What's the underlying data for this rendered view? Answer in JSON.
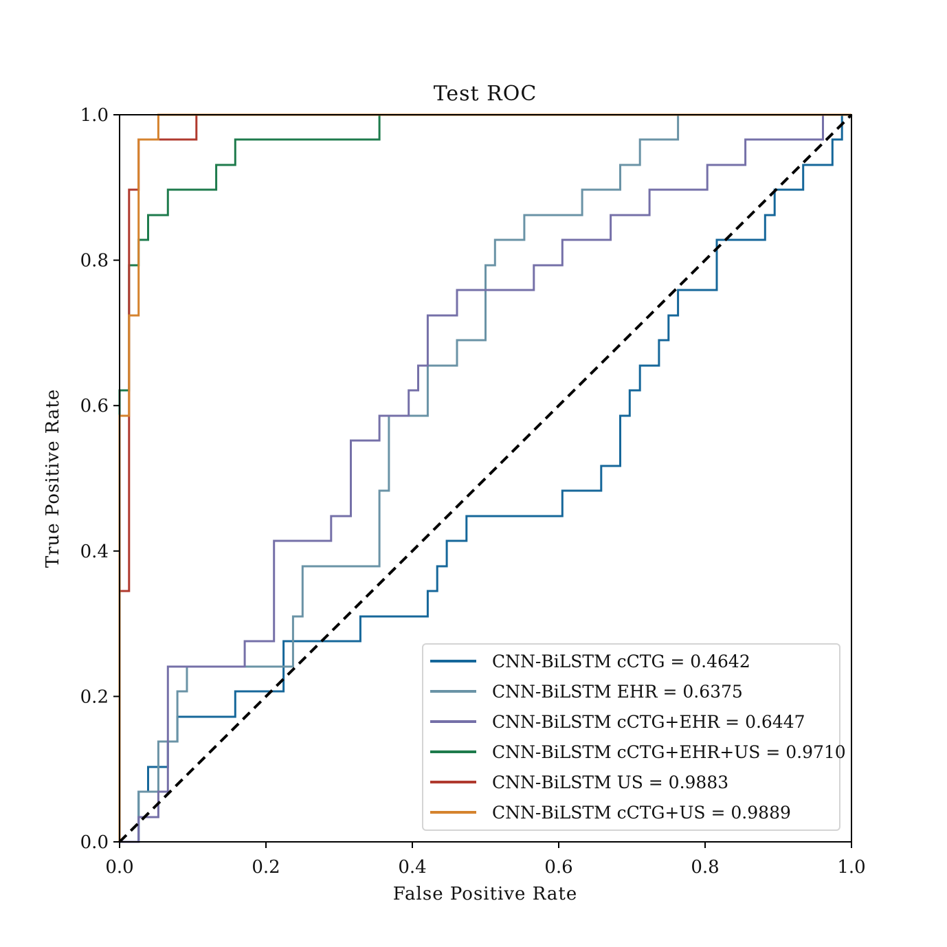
{
  "chart_data": {
    "type": "line",
    "title": "Test ROC",
    "xlabel": "False Positive Rate",
    "ylabel": "True Positive Rate",
    "xlim": [
      0.0,
      1.0
    ],
    "ylim": [
      0.0,
      1.0
    ],
    "xticks": [
      "0.0",
      "0.2",
      "0.4",
      "0.6",
      "0.8",
      "1.0"
    ],
    "yticks": [
      "0.0",
      "0.2",
      "0.4",
      "0.6",
      "0.8",
      "1.0"
    ],
    "grid": false,
    "legend_position": "lower-right",
    "baseline": {
      "name": "chance",
      "x": [
        0,
        1
      ],
      "y": [
        0,
        1
      ],
      "style": "dashed",
      "color": "#000000"
    },
    "series": [
      {
        "name": "CNN-BiLSTM cCTG",
        "legend_label": "CNN-BiLSTM cCTG  = 0.4642",
        "auc": "0.4642",
        "color": "#16679a",
        "x": [
          0.0,
          0.026,
          0.026,
          0.039,
          0.039,
          0.066,
          0.066,
          0.079,
          0.079,
          0.158,
          0.158,
          0.224,
          0.224,
          0.329,
          0.329,
          0.421,
          0.421,
          0.434,
          0.434,
          0.447,
          0.447,
          0.474,
          0.474,
          0.605,
          0.605,
          0.658,
          0.658,
          0.684,
          0.684,
          0.697,
          0.697,
          0.711,
          0.711,
          0.737,
          0.737,
          0.75,
          0.75,
          0.763,
          0.763,
          0.816,
          0.816,
          0.882,
          0.882,
          0.895,
          0.895,
          0.934,
          0.934,
          0.974,
          0.974,
          0.987,
          0.987,
          1.0
        ],
        "y": [
          0.0,
          0.0,
          0.069,
          0.069,
          0.103,
          0.103,
          0.138,
          0.138,
          0.172,
          0.172,
          0.207,
          0.207,
          0.276,
          0.276,
          0.31,
          0.31,
          0.345,
          0.345,
          0.379,
          0.379,
          0.414,
          0.414,
          0.448,
          0.448,
          0.483,
          0.483,
          0.517,
          0.517,
          0.586,
          0.586,
          0.621,
          0.621,
          0.655,
          0.655,
          0.69,
          0.69,
          0.724,
          0.724,
          0.759,
          0.759,
          0.828,
          0.828,
          0.862,
          0.862,
          0.897,
          0.897,
          0.931,
          0.931,
          0.966,
          0.966,
          1.0,
          1.0
        ]
      },
      {
        "name": "CNN-BiLSTM EHR",
        "legend_label": "CNN-BiLSTM EHR  = 0.6375",
        "auc": "0.6375",
        "color": "#6a93a6",
        "x": [
          0.0,
          0.026,
          0.026,
          0.053,
          0.053,
          0.079,
          0.079,
          0.092,
          0.092,
          0.237,
          0.237,
          0.25,
          0.25,
          0.355,
          0.355,
          0.368,
          0.368,
          0.421,
          0.421,
          0.461,
          0.461,
          0.5,
          0.5,
          0.513,
          0.513,
          0.553,
          0.553,
          0.632,
          0.632,
          0.684,
          0.684,
          0.711,
          0.711,
          0.763,
          0.763,
          0.947,
          0.947,
          1.0
        ],
        "y": [
          0.0,
          0.0,
          0.069,
          0.069,
          0.138,
          0.138,
          0.207,
          0.207,
          0.241,
          0.241,
          0.31,
          0.31,
          0.379,
          0.379,
          0.483,
          0.483,
          0.586,
          0.586,
          0.655,
          0.655,
          0.69,
          0.69,
          0.793,
          0.793,
          0.828,
          0.828,
          0.862,
          0.862,
          0.897,
          0.897,
          0.931,
          0.931,
          0.966,
          0.966,
          1.0,
          1.0,
          1.0,
          1.0
        ]
      },
      {
        "name": "CNN-BiLSTM cCTG+EHR",
        "legend_label": "CNN-BiLSTM cCTG+EHR  = 0.6447",
        "auc": "0.6447",
        "color": "#7570a8",
        "x": [
          0.0,
          0.026,
          0.026,
          0.053,
          0.053,
          0.066,
          0.066,
          0.171,
          0.171,
          0.211,
          0.211,
          0.289,
          0.289,
          0.316,
          0.316,
          0.355,
          0.355,
          0.395,
          0.395,
          0.408,
          0.408,
          0.421,
          0.421,
          0.461,
          0.461,
          0.566,
          0.566,
          0.605,
          0.605,
          0.671,
          0.671,
          0.724,
          0.724,
          0.803,
          0.803,
          0.855,
          0.855,
          0.961,
          0.961,
          1.0
        ],
        "y": [
          0.0,
          0.0,
          0.034,
          0.034,
          0.069,
          0.069,
          0.241,
          0.241,
          0.276,
          0.276,
          0.414,
          0.414,
          0.448,
          0.448,
          0.552,
          0.552,
          0.586,
          0.586,
          0.621,
          0.621,
          0.655,
          0.655,
          0.724,
          0.724,
          0.759,
          0.759,
          0.793,
          0.793,
          0.828,
          0.828,
          0.862,
          0.862,
          0.897,
          0.897,
          0.931,
          0.931,
          0.966,
          0.966,
          1.0,
          1.0
        ]
      },
      {
        "name": "CNN-BiLSTM cCTG+EHR+US",
        "legend_label": "CNN-BiLSTM cCTG+EHR+US  = 0.9710",
        "auc": "0.9710",
        "color": "#1e7b4c",
        "x": [
          0.0,
          0.0,
          0.013,
          0.013,
          0.026,
          0.026,
          0.039,
          0.039,
          0.066,
          0.066,
          0.132,
          0.132,
          0.158,
          0.158,
          0.355,
          0.355,
          1.0
        ],
        "y": [
          0.0,
          0.621,
          0.621,
          0.793,
          0.793,
          0.828,
          0.828,
          0.862,
          0.862,
          0.897,
          0.897,
          0.931,
          0.931,
          0.966,
          0.966,
          1.0,
          1.0
        ]
      },
      {
        "name": "CNN-BiLSTM US",
        "legend_label": "CNN-BiLSTM US  = 0.9883",
        "auc": "0.9883",
        "color": "#b03a2e",
        "x": [
          0.0,
          0.0,
          0.013,
          0.013,
          0.026,
          0.026,
          0.105,
          0.105,
          1.0
        ],
        "y": [
          0.0,
          0.345,
          0.345,
          0.897,
          0.897,
          0.966,
          0.966,
          1.0,
          1.0
        ]
      },
      {
        "name": "CNN-BiLSTM cCTG+US",
        "legend_label": "CNN-BiLSTM cCTG+US  = 0.9889",
        "auc": "0.9889",
        "color": "#d5832e",
        "x": [
          0.0,
          0.0,
          0.013,
          0.013,
          0.026,
          0.026,
          0.053,
          0.053,
          1.0
        ],
        "y": [
          0.0,
          0.586,
          0.586,
          0.724,
          0.724,
          0.966,
          0.966,
          1.0,
          1.0
        ]
      }
    ]
  }
}
